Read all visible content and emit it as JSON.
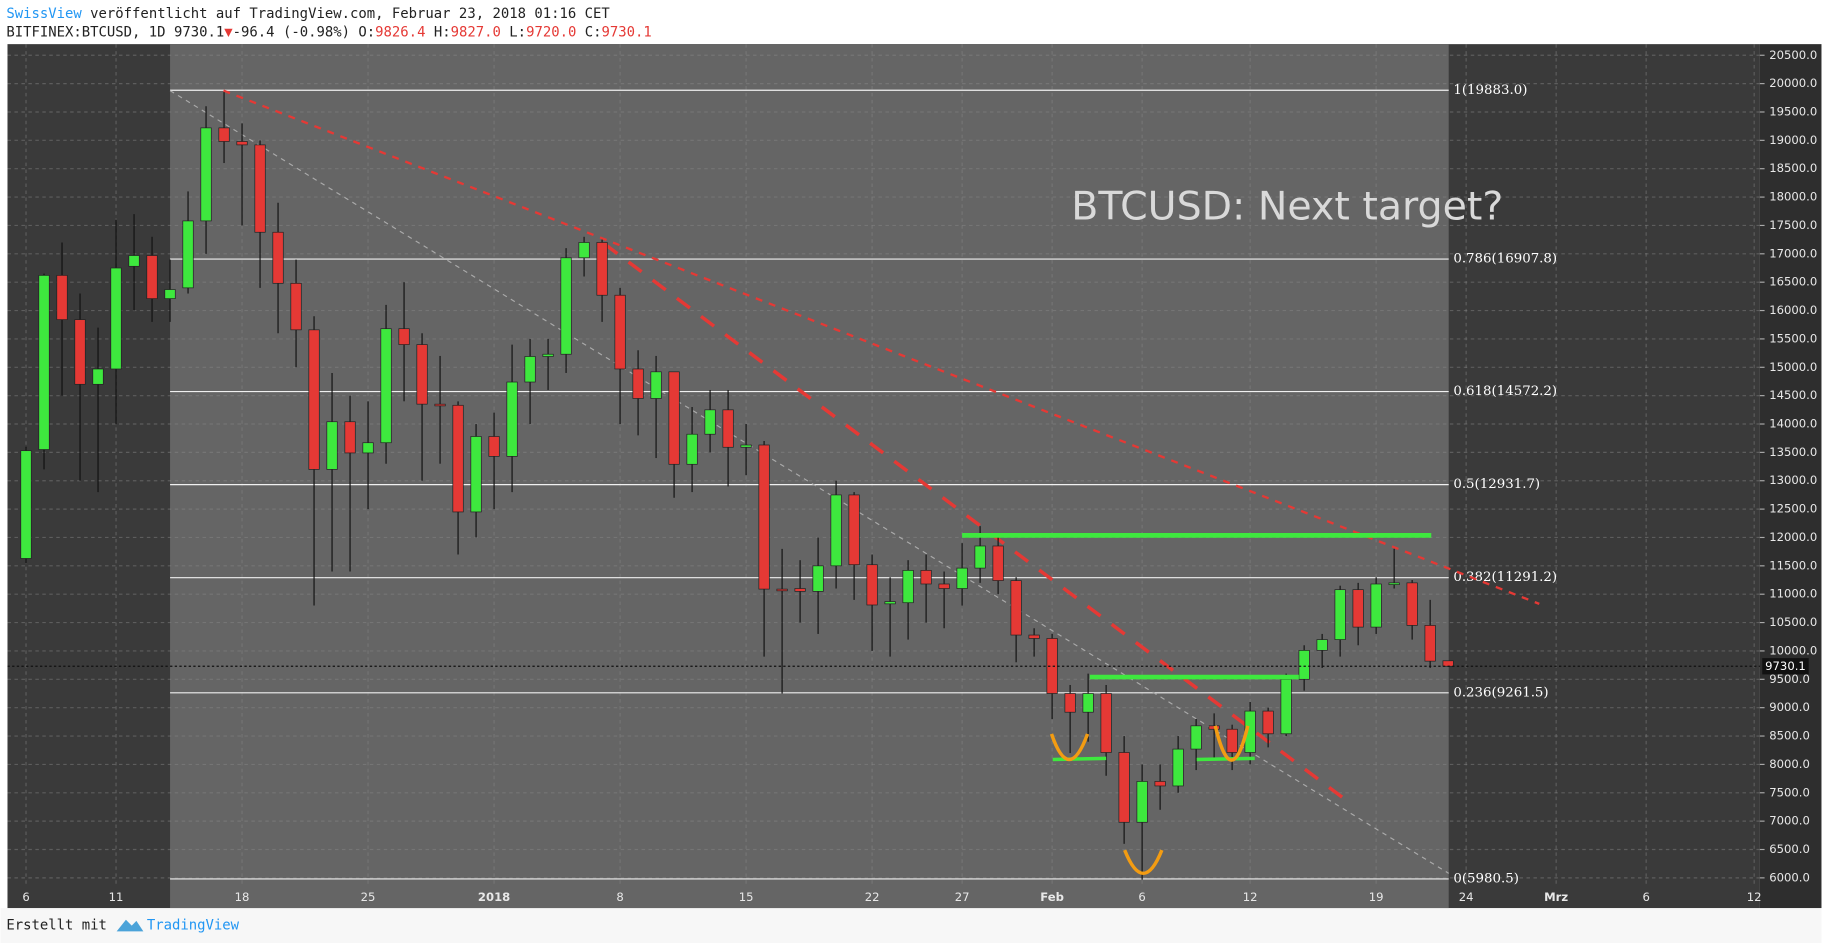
{
  "header": {
    "author": "SwissView",
    "published": "veröffentlicht auf TradingView.com, Februar 23, 2018 01:16 CET",
    "symbol": "BITFINEX:BTCUSD, 1D",
    "last": "9730.1",
    "arrow": "▼",
    "change": "-96.4 (-0.98%)",
    "quote": [
      {
        "k": "O:",
        "v": "9826.4"
      },
      {
        "k": "H:",
        "v": "9827.0"
      },
      {
        "k": "L:",
        "v": "9720.0"
      },
      {
        "k": "C:",
        "v": "9730.1"
      }
    ]
  },
  "footer": {
    "made_with": "Erstellt mit",
    "brand": "TradingView"
  },
  "chart_data": {
    "type": "candlestick",
    "annotation": "BTCUSD: Next target?",
    "price_label": "9730.1",
    "up_color": "#3ee83e",
    "down_color": "#e53935",
    "grid": true,
    "open": [
      11630,
      13550,
      16620,
      15840,
      14700,
      14970,
      16780,
      16970,
      16210,
      16400,
      17580,
      19220,
      18980,
      18920,
      17380,
      16480,
      15660,
      13200,
      14040,
      13490,
      13670,
      15680,
      15400,
      14350,
      14330,
      12450,
      13780,
      13430,
      14740,
      15190,
      15230,
      16930,
      17200,
      16270,
      14970,
      14450,
      14920,
      13290,
      13820,
      14250,
      13590,
      13630,
      11090,
      11100,
      11050,
      11500,
      12750,
      11520,
      10830,
      10850,
      11420,
      11180,
      11100,
      11460,
      11850,
      11240,
      10280,
      10220,
      9250,
      8920,
      9250,
      8210,
      6980,
      7700,
      7620,
      8270,
      8680,
      8620,
      8210,
      8940,
      8540,
      9500,
      10010,
      10200,
      11080,
      10420,
      11180,
      11200,
      10450,
      9826.4
    ],
    "high": [
      13600,
      16650,
      17200,
      16300,
      15700,
      17600,
      17700,
      17300,
      16900,
      18100,
      19600,
      19850,
      19300,
      19000,
      17900,
      16900,
      15900,
      14900,
      14500,
      14400,
      16100,
      16500,
      15600,
      15200,
      14400,
      14000,
      14200,
      15400,
      15500,
      15500,
      17100,
      17300,
      17250,
      16400,
      15300,
      15200,
      14900,
      14300,
      14600,
      14600,
      14000,
      13700,
      11800,
      11600,
      12000,
      13000,
      12800,
      11700,
      11300,
      11600,
      11700,
      11400,
      11900,
      12200,
      12000,
      11300,
      10400,
      10300,
      9400,
      9600,
      9400,
      8500,
      8000,
      8000,
      8500,
      8800,
      8900,
      8700,
      9100,
      9000,
      9600,
      10100,
      10300,
      11150,
      11200,
      11300,
      11800,
      11250,
      10900,
      9827.0
    ],
    "low": [
      11550,
      13200,
      14500,
      13000,
      12800,
      14000,
      16000,
      15800,
      15800,
      16300,
      17000,
      18600,
      17500,
      16400,
      15600,
      15000,
      10800,
      11400,
      11400,
      12500,
      13300,
      14400,
      13000,
      13300,
      11700,
      12000,
      12500,
      12800,
      14000,
      14600,
      14900,
      16600,
      15800,
      14000,
      13800,
      13400,
      12700,
      12800,
      13500,
      12900,
      13100,
      9900,
      9250,
      10500,
      10300,
      11100,
      10900,
      10000,
      9900,
      10200,
      10500,
      10400,
      10800,
      11200,
      11000,
      9800,
      9900,
      8800,
      8200,
      8400,
      7800,
      6600,
      5970,
      7200,
      7500,
      7900,
      8100,
      7900,
      8000,
      8300,
      8500,
      9300,
      9700,
      9900,
      10100,
      10300,
      11100,
      10200,
      9700,
      9720.0
    ],
    "close": [
      13530,
      16620,
      15840,
      14700,
      14970,
      16750,
      16970,
      16210,
      16370,
      17580,
      19220,
      18980,
      18920,
      17380,
      16480,
      15660,
      13200,
      14040,
      13490,
      13670,
      15680,
      15400,
      14350,
      14330,
      12450,
      13780,
      13430,
      14740,
      15190,
      15230,
      16930,
      17200,
      16270,
      14970,
      14450,
      14920,
      13290,
      13820,
      14250,
      13590,
      13630,
      11090,
      11070,
      11050,
      11500,
      12750,
      11520,
      10810,
      10870,
      11420,
      11180,
      11100,
      11460,
      11850,
      11240,
      10280,
      10220,
      9250,
      8920,
      9250,
      8210,
      6980,
      7700,
      7620,
      8270,
      8680,
      8620,
      8210,
      8940,
      8540,
      9500,
      10010,
      10200,
      11080,
      10420,
      11180,
      11200,
      10450,
      9820,
      9730.1
    ],
    "xlim": [
      -1.03,
      96.32
    ],
    "xticks": [
      {
        "value": 0,
        "label": "6"
      },
      {
        "value": 5,
        "label": "11"
      },
      {
        "value": 12,
        "label": "18"
      },
      {
        "value": 19,
        "label": "25"
      },
      {
        "value": 26,
        "label": "2018"
      },
      {
        "value": 33,
        "label": "8"
      },
      {
        "value": 40,
        "label": "15"
      },
      {
        "value": 47,
        "label": "22"
      },
      {
        "value": 52,
        "label": "27"
      },
      {
        "value": 57,
        "label": "Feb"
      },
      {
        "value": 62,
        "label": "6"
      },
      {
        "value": 68,
        "label": "12"
      },
      {
        "value": 75,
        "label": "19"
      },
      {
        "value": 80,
        "label": "24"
      },
      {
        "value": 85,
        "label": "Mrz"
      },
      {
        "value": 90,
        "label": "6"
      },
      {
        "value": 96,
        "label": "12"
      }
    ],
    "ylim": [
      5507,
      20696
    ],
    "yticks": [
      {
        "value": 6000,
        "label": "6000.0"
      },
      {
        "value": 6500,
        "label": "6500.0"
      },
      {
        "value": 7000,
        "label": "7000.0"
      },
      {
        "value": 7500,
        "label": "7500.0"
      },
      {
        "value": 8000,
        "label": "8000.0"
      },
      {
        "value": 8500,
        "label": "8500.0"
      },
      {
        "value": 9000,
        "label": "9000.0"
      },
      {
        "value": 9500,
        "label": "9500.0"
      },
      {
        "value": 10000,
        "label": "10000.0"
      },
      {
        "value": 10500,
        "label": "10500.0"
      },
      {
        "value": 11000,
        "label": "11000.0"
      },
      {
        "value": 11500,
        "label": "11500.0"
      },
      {
        "value": 12000,
        "label": "12000.0"
      },
      {
        "value": 12500,
        "label": "12500.0"
      },
      {
        "value": 13000,
        "label": "13000.0"
      },
      {
        "value": 13500,
        "label": "13500.0"
      },
      {
        "value": 14000,
        "label": "14000.0"
      },
      {
        "value": 14500,
        "label": "14500.0"
      },
      {
        "value": 15000,
        "label": "15000.0"
      },
      {
        "value": 15500,
        "label": "15500.0"
      },
      {
        "value": 16000,
        "label": "16000.0"
      },
      {
        "value": 16500,
        "label": "16500.0"
      },
      {
        "value": 17000,
        "label": "17000.0"
      },
      {
        "value": 17500,
        "label": "17500.0"
      },
      {
        "value": 18000,
        "label": "18000.0"
      },
      {
        "value": 18500,
        "label": "18500.0"
      },
      {
        "value": 19000,
        "label": "19000.0"
      },
      {
        "value": 19500,
        "label": "19500.0"
      },
      {
        "value": 20000,
        "label": "20000.0"
      },
      {
        "value": 20500,
        "label": "20500.0"
      }
    ],
    "fib_levels": [
      {
        "label": "1(19883.0)",
        "price": 19883.0
      },
      {
        "label": "0.786(16907.8)",
        "price": 16907.8
      },
      {
        "label": "0.618(14572.2)",
        "price": 14572.2
      },
      {
        "label": "0.5(12931.7)",
        "price": 12931.7
      },
      {
        "label": "0.382(11291.2)",
        "price": 11291.2
      },
      {
        "label": "0.236(9261.5)",
        "price": 9261.5
      },
      {
        "label": "0(5980.5)",
        "price": 5980.5
      }
    ]
  }
}
